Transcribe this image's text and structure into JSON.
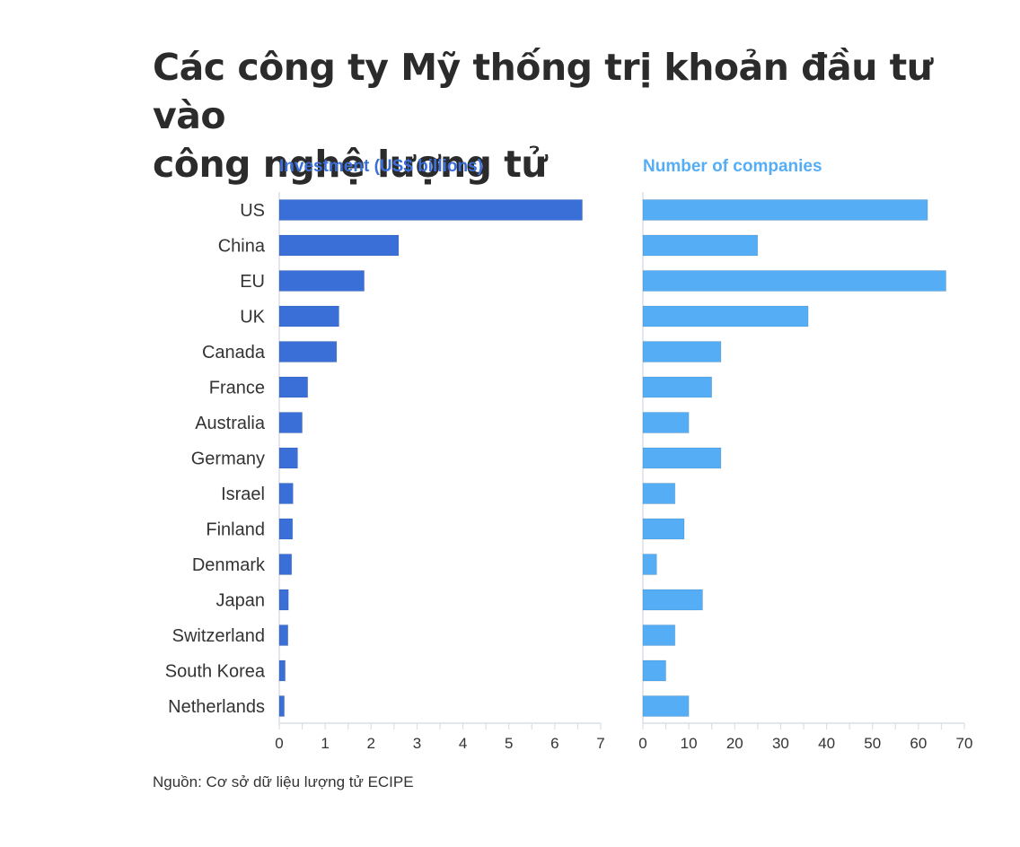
{
  "title_line1": "Các công ty Mỹ thống trị khoản đầu tư vào",
  "title_line2": "công nghệ lượng tử",
  "source": "Nguồn: Cơ sở dữ liệu lượng tử ECIPE",
  "colors": {
    "investment": "#3a6fd8",
    "companies": "#55aef5",
    "title": "#2b2b2b"
  },
  "chart_data": [
    {
      "type": "bar",
      "orientation": "horizontal",
      "title": "Investment (US$ billions)",
      "categories": [
        "US",
        "China",
        "EU",
        "UK",
        "Canada",
        "France",
        "Australia",
        "Germany",
        "Israel",
        "Finland",
        "Denmark",
        "Japan",
        "Switzerland",
        "South Korea",
        "Netherlands"
      ],
      "values": [
        6.6,
        2.6,
        1.85,
        1.3,
        1.25,
        0.62,
        0.5,
        0.4,
        0.3,
        0.29,
        0.27,
        0.2,
        0.19,
        0.13,
        0.11
      ],
      "xlim": [
        0,
        7
      ],
      "xticks": [
        0,
        1,
        2,
        3,
        4,
        5,
        6,
        7
      ],
      "grid": false
    },
    {
      "type": "bar",
      "orientation": "horizontal",
      "title": "Number of companies",
      "categories": [
        "US",
        "China",
        "EU",
        "UK",
        "Canada",
        "France",
        "Australia",
        "Germany",
        "Israel",
        "Finland",
        "Denmark",
        "Japan",
        "Switzerland",
        "South Korea",
        "Netherlands"
      ],
      "values": [
        62,
        25,
        66,
        36,
        17,
        15,
        10,
        17,
        7,
        9,
        3,
        13,
        7,
        5,
        10
      ],
      "xlim": [
        0,
        70
      ],
      "xticks": [
        0,
        10,
        20,
        30,
        40,
        50,
        60,
        70
      ],
      "grid": false
    }
  ]
}
